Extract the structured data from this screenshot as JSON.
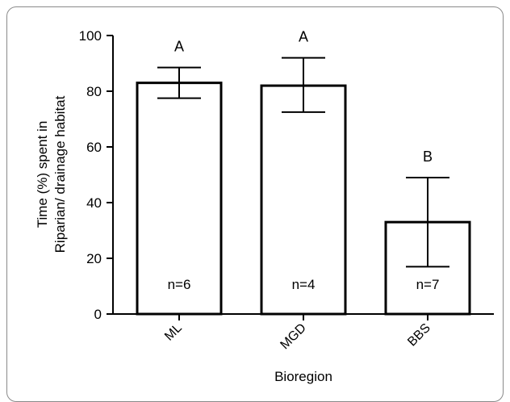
{
  "chart_data": {
    "type": "bar",
    "title": "",
    "xlabel": "Bioregion",
    "ylabel_lines": [
      "Time (%) spent in",
      "Riparian/ drainage habitat"
    ],
    "categories": [
      "ML",
      "MGD",
      "BBS"
    ],
    "values": [
      83,
      82,
      33
    ],
    "error_low": [
      77.5,
      72.5,
      17
    ],
    "error_high": [
      88.5,
      92,
      49
    ],
    "group_letters": [
      "A",
      "A",
      "B"
    ],
    "sample_sizes": [
      "n=6",
      "n=4",
      "n=7"
    ],
    "ylim": [
      0,
      100
    ],
    "yticks": [
      0,
      20,
      40,
      60,
      80,
      100
    ],
    "grid": false,
    "bar_fill": "#ffffff",
    "bar_stroke": "#000000"
  }
}
